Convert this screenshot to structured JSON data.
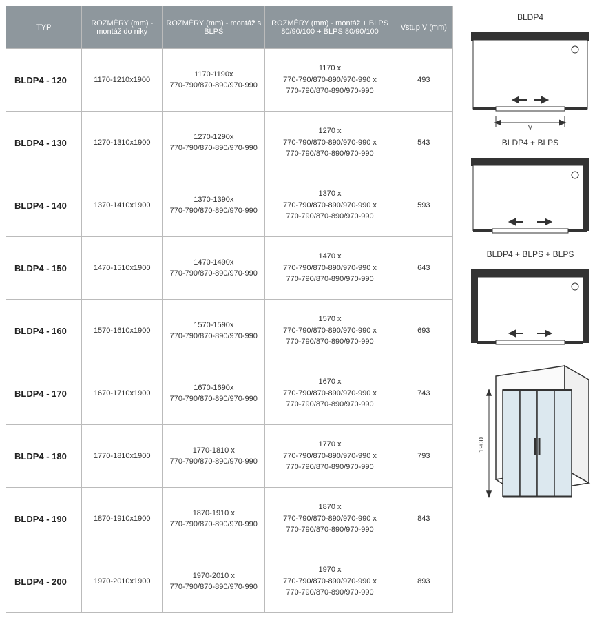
{
  "table": {
    "columns": [
      "TYP",
      "ROZMĚRY (mm) - montáž do niky",
      "ROZMĚRY (mm) - montáž s BLPS",
      "ROZMĚRY (mm) - montáž + BLPS 80/90/100 + BLPS 80/90/100",
      "Vstup V (mm)"
    ],
    "col_widths": [
      "17%",
      "18%",
      "23%",
      "29%",
      "13%"
    ],
    "header_bg": "#8e979d",
    "header_fg": "#ffffff",
    "border_color": "#bbbbbb",
    "rows": [
      {
        "typ": "BLDP4 - 120",
        "niky": "1170-1210x1900",
        "blps": [
          "1170-1190x",
          "770-790/870-890/970-990"
        ],
        "blps2": [
          "1170 x",
          "770-790/870-890/970-990 x",
          "770-790/870-890/970-990"
        ],
        "vstup": "493"
      },
      {
        "typ": "BLDP4 - 130",
        "niky": "1270-1310x1900",
        "blps": [
          "1270-1290x",
          "770-790/870-890/970-990"
        ],
        "blps2": [
          "1270 x",
          "770-790/870-890/970-990 x",
          "770-790/870-890/970-990"
        ],
        "vstup": "543"
      },
      {
        "typ": "BLDP4 - 140",
        "niky": "1370-1410x1900",
        "blps": [
          "1370-1390x",
          "770-790/870-890/970-990"
        ],
        "blps2": [
          "1370 x",
          "770-790/870-890/970-990 x",
          "770-790/870-890/970-990"
        ],
        "vstup": "593"
      },
      {
        "typ": "BLDP4 - 150",
        "niky": "1470-1510x1900",
        "blps": [
          "1470-1490x",
          "770-790/870-890/970-990"
        ],
        "blps2": [
          "1470 x",
          "770-790/870-890/970-990 x",
          "770-790/870-890/970-990"
        ],
        "vstup": "643"
      },
      {
        "typ": "BLDP4 - 160",
        "niky": "1570-1610x1900",
        "blps": [
          "1570-1590x",
          "770-790/870-890/970-990"
        ],
        "blps2": [
          "1570 x",
          "770-790/870-890/970-990 x",
          "770-790/870-890/970-990"
        ],
        "vstup": "693"
      },
      {
        "typ": "BLDP4 - 170",
        "niky": "1670-1710x1900",
        "blps": [
          "1670-1690x",
          "770-790/870-890/970-990"
        ],
        "blps2": [
          "1670 x",
          "770-790/870-890/970-990 x",
          "770-790/870-890/970-990"
        ],
        "vstup": "743"
      },
      {
        "typ": "BLDP4 - 180",
        "niky": "1770-1810x1900",
        "blps": [
          "1770-1810 x",
          "770-790/870-890/970-990"
        ],
        "blps2": [
          "1770 x",
          "770-790/870-890/970-990 x",
          "770-790/870-890/970-990"
        ],
        "vstup": "793"
      },
      {
        "typ": "BLDP4 - 190",
        "niky": "1870-1910x1900",
        "blps": [
          "1870-1910 x",
          "770-790/870-890/970-990"
        ],
        "blps2": [
          "1870 x",
          "770-790/870-890/970-990 x",
          "770-790/870-890/970-990"
        ],
        "vstup": "843"
      },
      {
        "typ": "BLDP4 - 200",
        "niky": "1970-2010x1900",
        "blps": [
          "1970-2010 x",
          "770-790/870-890/970-990"
        ],
        "blps2": [
          "1970 x",
          "770-790/870-890/970-990 x",
          "770-790/870-890/970-990"
        ],
        "vstup": "893"
      }
    ]
  },
  "diagrams": {
    "labels": [
      "BLDP4",
      "BLDP4 + BLPS",
      "BLDP4 + BLPS + BLPS"
    ],
    "stroke": "#333333",
    "fill_light": "#f5f5f5",
    "door_fill": "#dce8ef",
    "height_label": "1900",
    "v_label": "V"
  }
}
